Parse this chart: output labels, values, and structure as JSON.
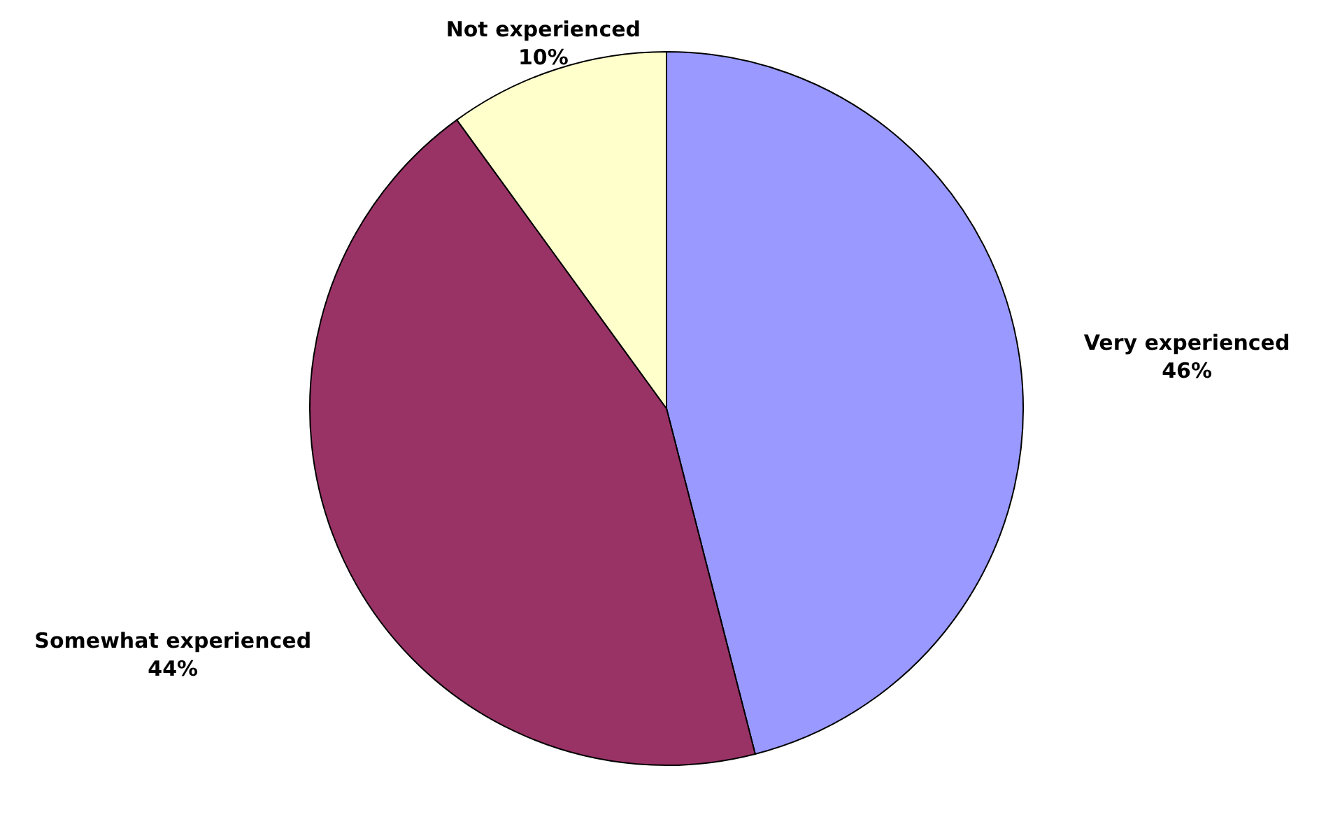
{
  "chart_data": {
    "type": "pie",
    "categories": [
      "Very experienced",
      "Somewhat experienced",
      "Not experienced"
    ],
    "values": [
      46,
      44,
      10
    ],
    "value_labels": [
      "46%",
      "44%",
      "10%"
    ],
    "colors": [
      "#9999ff",
      "#993366",
      "#ffffcc"
    ]
  }
}
